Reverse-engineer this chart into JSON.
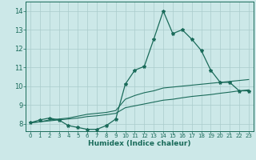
{
  "xlabel": "Humidex (Indice chaleur)",
  "bg_color": "#cce8e8",
  "grid_color": "#aacccc",
  "line_color": "#1a6b5a",
  "xlim": [
    -0.5,
    23.5
  ],
  "ylim": [
    7.6,
    14.5
  ],
  "xticks": [
    0,
    1,
    2,
    3,
    4,
    5,
    6,
    7,
    8,
    9,
    10,
    11,
    12,
    13,
    14,
    15,
    16,
    17,
    18,
    19,
    20,
    21,
    22,
    23
  ],
  "yticks": [
    8,
    9,
    10,
    11,
    12,
    13,
    14
  ],
  "series1_x": [
    0,
    1,
    2,
    3,
    4,
    5,
    6,
    7,
    8,
    9,
    10,
    11,
    12,
    13,
    14,
    15,
    16,
    17,
    18,
    19,
    20,
    21,
    22,
    23
  ],
  "series1_y": [
    8.05,
    8.2,
    8.3,
    8.2,
    7.9,
    7.8,
    7.7,
    7.7,
    7.9,
    8.25,
    10.1,
    10.85,
    11.05,
    12.5,
    14.0,
    12.8,
    13.0,
    12.5,
    11.9,
    10.85,
    10.2,
    10.2,
    9.75,
    9.75
  ],
  "series2_x": [
    0,
    1,
    2,
    3,
    4,
    5,
    6,
    7,
    8,
    9,
    10,
    11,
    12,
    13,
    14,
    15,
    16,
    17,
    18,
    19,
    20,
    21,
    22,
    23
  ],
  "series2_y": [
    8.05,
    8.1,
    8.2,
    8.25,
    8.3,
    8.4,
    8.5,
    8.55,
    8.6,
    8.7,
    9.3,
    9.5,
    9.65,
    9.75,
    9.9,
    9.95,
    10.0,
    10.05,
    10.1,
    10.15,
    10.2,
    10.25,
    10.3,
    10.35
  ],
  "series3_x": [
    0,
    1,
    2,
    3,
    4,
    5,
    6,
    7,
    8,
    9,
    10,
    11,
    12,
    13,
    14,
    15,
    16,
    17,
    18,
    19,
    20,
    21,
    22,
    23
  ],
  "series3_y": [
    8.05,
    8.1,
    8.15,
    8.2,
    8.25,
    8.3,
    8.38,
    8.42,
    8.48,
    8.55,
    8.85,
    8.95,
    9.05,
    9.15,
    9.25,
    9.3,
    9.38,
    9.45,
    9.5,
    9.55,
    9.62,
    9.68,
    9.75,
    9.8
  ]
}
